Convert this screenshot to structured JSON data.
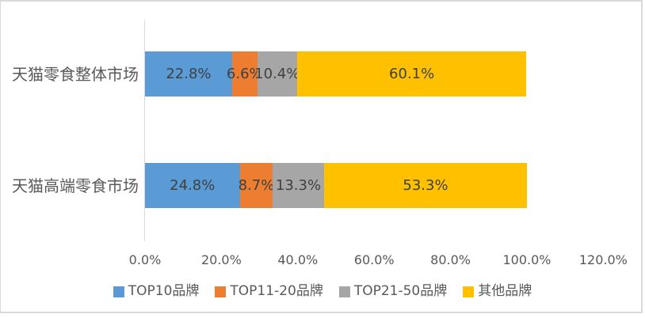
{
  "chart_data": {
    "type": "bar",
    "orientation": "horizontal",
    "stacked": true,
    "title": "",
    "categories": [
      "天猫零食整体市场",
      "天猫高端零食市场"
    ],
    "series": [
      {
        "name": "TOP10品牌",
        "color": "#5B9BD5",
        "values": [
          22.8,
          24.8
        ]
      },
      {
        "name": "TOP11-20品牌",
        "color": "#ED7D31",
        "values": [
          6.6,
          8.7
        ]
      },
      {
        "name": "TOP21-50品牌",
        "color": "#A6A6A6",
        "values": [
          10.4,
          13.3
        ]
      },
      {
        "name": "其他品牌",
        "color": "#FFC000",
        "values": [
          60.1,
          53.3
        ]
      }
    ],
    "data_labels": [
      [
        "22.8%",
        "6.6%",
        "10.4%",
        "60.1%"
      ],
      [
        "24.8%",
        "8.7%",
        "13.3%",
        "53.3%"
      ]
    ],
    "x_ticks": [
      "0.0%",
      "20.0%",
      "40.0%",
      "60.0%",
      "80.0%",
      "100.0%",
      "120.0%"
    ],
    "xlim": [
      0,
      120
    ],
    "grid": "off",
    "legend_position": "bottom",
    "axis_color": "#D9D9D9",
    "text_color": "#595959",
    "data_label_color": "#404040",
    "background_color": "#FFFFFF",
    "border_color": "#D9D9D9"
  }
}
